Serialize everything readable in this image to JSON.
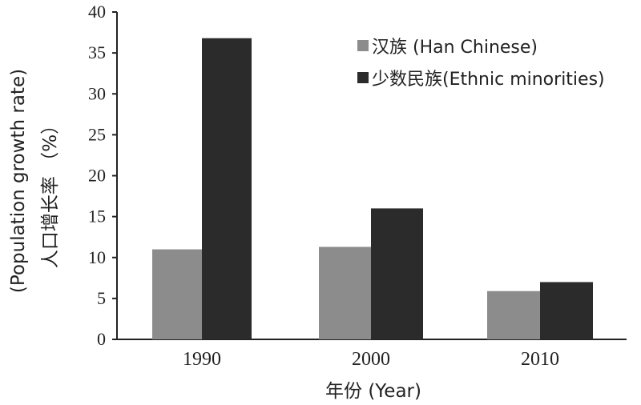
{
  "chart_data": {
    "type": "bar",
    "categories": [
      "1990",
      "2000",
      "2010"
    ],
    "series": [
      {
        "name": "汉族 (Han Chinese)",
        "color": "#8c8c8c",
        "values": [
          11.0,
          11.3,
          5.9
        ]
      },
      {
        "name": "少数民族(Ethnic minorities)",
        "color": "#2b2b2b",
        "values": [
          36.8,
          16.0,
          7.0
        ]
      }
    ],
    "xlabel": "年份 (Year)",
    "ylabel_line1": "(Population growth rate)",
    "ylabel_line2": "人口增长率 （%）",
    "ylim": [
      0,
      40
    ],
    "yticks": [
      "0",
      "5",
      "10",
      "15",
      "20",
      "25",
      "30",
      "35",
      "40"
    ],
    "grid": false,
    "legend_position": "top-right"
  }
}
